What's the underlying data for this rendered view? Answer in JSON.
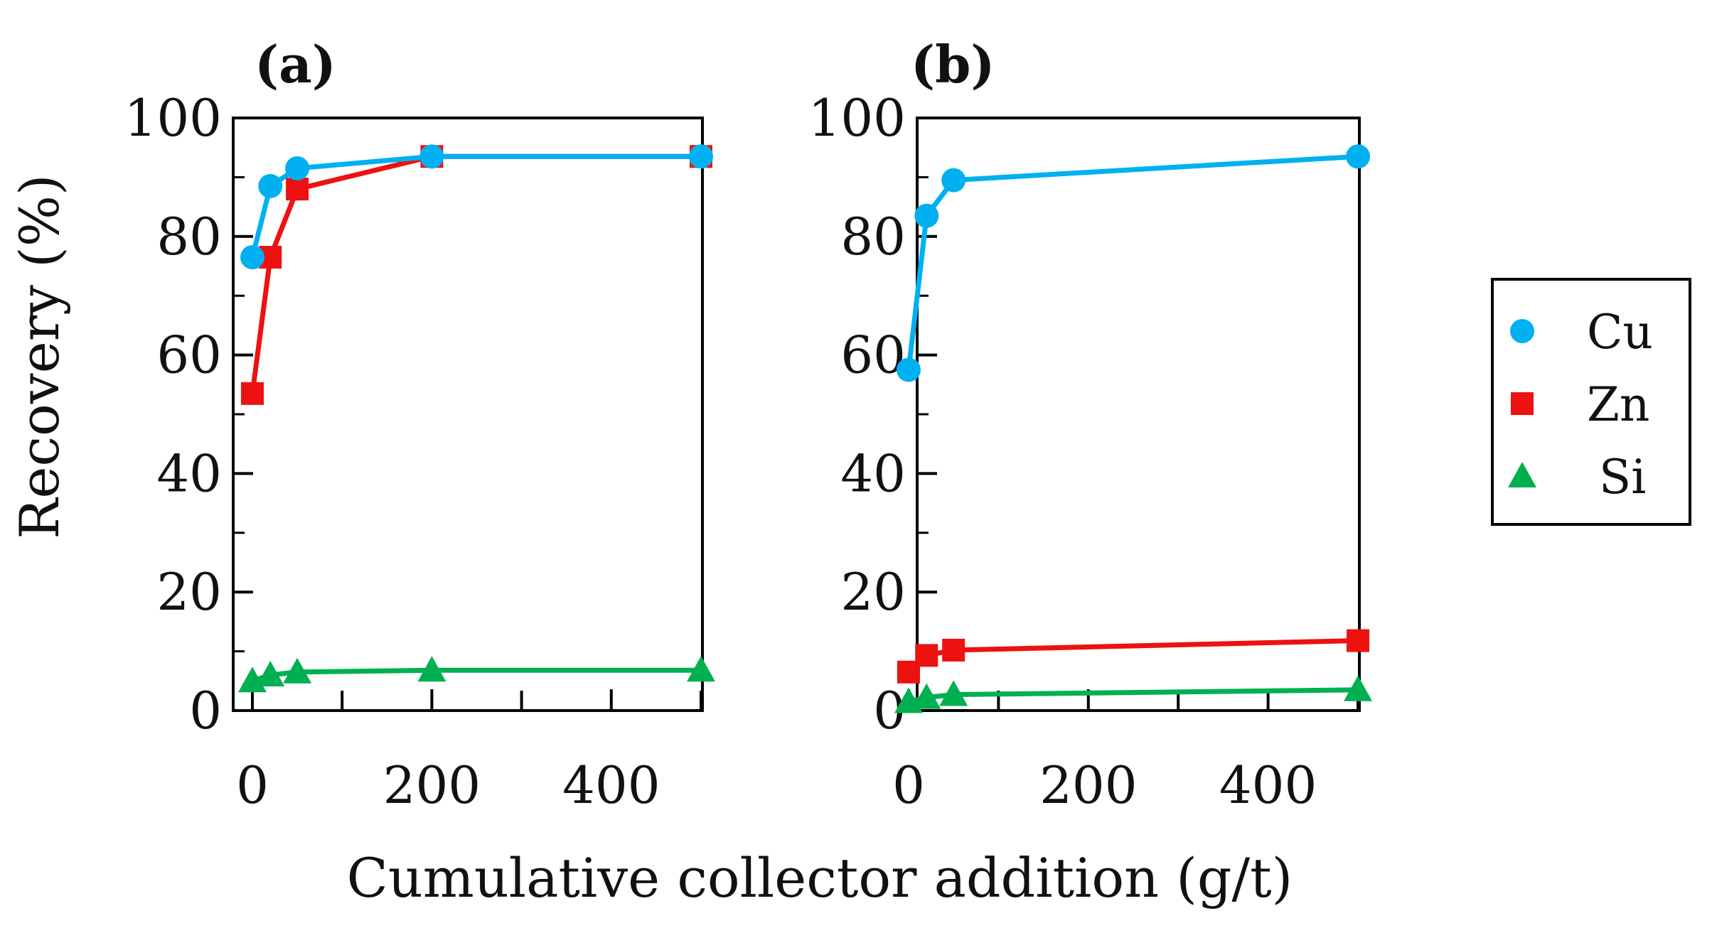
{
  "figure": {
    "xlabel": "Cumulative collector addition (g/t)",
    "ylabel": "Recovery (%)"
  },
  "legend": {
    "items": [
      {
        "name": "Cu",
        "color": "#00b0f0",
        "marker": "circle"
      },
      {
        "name": "Zn",
        "color": "#ee1111",
        "marker": "square"
      },
      {
        "name": "Si",
        "color": "#00b050",
        "marker": "triangle"
      }
    ]
  },
  "chart_data": [
    {
      "type": "line",
      "panel_label": "(a)",
      "xlim": [
        0,
        500
      ],
      "ylim": [
        0,
        100
      ],
      "x_ticks": [
        "0",
        "200",
        "400"
      ],
      "x_tick_values": [
        0,
        200,
        400
      ],
      "y_ticks": [
        "0",
        "20",
        "40",
        "60",
        "80",
        "100"
      ],
      "y_tick_values": [
        0,
        20,
        40,
        60,
        80,
        100
      ],
      "series": [
        {
          "name": "Cu",
          "color": "#00b0f0",
          "marker": "circle",
          "x": [
            0,
            20,
            50,
            200,
            500
          ],
          "y": [
            76.5,
            88.5,
            91.5,
            93.5,
            93.5
          ]
        },
        {
          "name": "Zn",
          "color": "#ee1111",
          "marker": "square",
          "x": [
            0,
            20,
            50,
            200,
            500
          ],
          "y": [
            53.5,
            76.5,
            88,
            93.5,
            93.5
          ]
        },
        {
          "name": "Si",
          "color": "#00b050",
          "marker": "triangle",
          "x": [
            0,
            20,
            50,
            200,
            500
          ],
          "y": [
            5,
            6,
            6.5,
            6.8,
            6.8
          ]
        }
      ]
    },
    {
      "type": "line",
      "panel_label": "(b)",
      "xlim": [
        0,
        500
      ],
      "ylim": [
        0,
        100
      ],
      "x_ticks": [
        "0",
        "200",
        "400"
      ],
      "x_tick_values": [
        0,
        200,
        400
      ],
      "y_ticks": [
        "0",
        "20",
        "40",
        "60",
        "80",
        "100"
      ],
      "y_tick_values": [
        0,
        20,
        40,
        60,
        80,
        100
      ],
      "series": [
        {
          "name": "Cu",
          "color": "#00b0f0",
          "marker": "circle",
          "x": [
            0,
            20,
            50,
            500
          ],
          "y": [
            57.5,
            83.5,
            89.5,
            93.5
          ]
        },
        {
          "name": "Zn",
          "color": "#ee1111",
          "marker": "square",
          "x": [
            0,
            20,
            50,
            500
          ],
          "y": [
            6.5,
            9.3,
            10.2,
            11.8
          ]
        },
        {
          "name": "Si",
          "color": "#00b050",
          "marker": "triangle",
          "x": [
            0,
            20,
            50,
            500
          ],
          "y": [
            1.5,
            2.2,
            2.7,
            3.5
          ]
        }
      ]
    }
  ]
}
